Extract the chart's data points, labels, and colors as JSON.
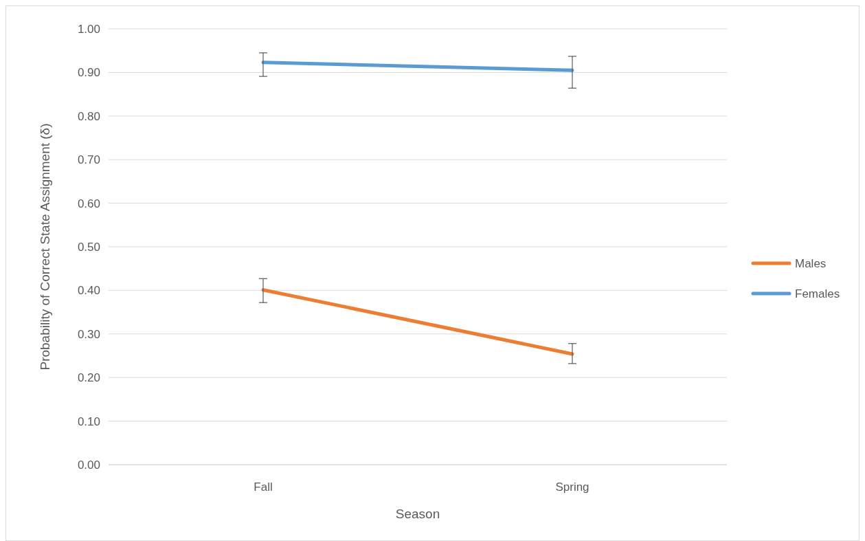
{
  "chart_data": {
    "type": "line",
    "xlabel": "Season",
    "ylabel": "Probability of Correct State  Assignment (δ)",
    "categories": [
      "Fall",
      "Spring"
    ],
    "series": [
      {
        "name": "Males",
        "color": "#ed7d31",
        "values": [
          0.401,
          0.254
        ],
        "errors": [
          [
            0.372,
            0.427
          ],
          [
            0.232,
            0.278
          ]
        ]
      },
      {
        "name": "Females",
        "color": "#5b9bd5",
        "values": [
          0.923,
          0.905
        ],
        "errors": [
          [
            0.891,
            0.945
          ],
          [
            0.864,
            0.937
          ]
        ]
      }
    ],
    "ylim": [
      0,
      1
    ],
    "yticks": [
      {
        "value": 0,
        "label": "0.00"
      },
      {
        "value": 0.1,
        "label": "0.10"
      },
      {
        "value": 0.2,
        "label": "0.20"
      },
      {
        "value": 0.3,
        "label": "0.30"
      },
      {
        "value": 0.4,
        "label": "0.40"
      },
      {
        "value": 0.5,
        "label": "0.50"
      },
      {
        "value": 0.6,
        "label": "0.60"
      },
      {
        "value": 0.7,
        "label": "0.70"
      },
      {
        "value": 0.8,
        "label": "0.80"
      },
      {
        "value": 0.9,
        "label": "0.90"
      },
      {
        "value": 1,
        "label": "1.00"
      }
    ],
    "grid": "y",
    "legend": "right",
    "marker": "none",
    "line_style": "solid"
  }
}
